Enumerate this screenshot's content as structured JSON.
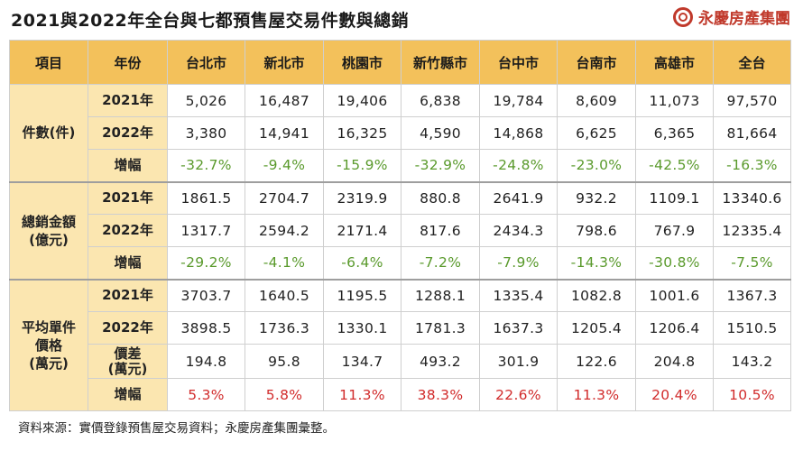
{
  "title": "2021與2022年全台與七都預售屋交易件數與總銷",
  "brand": {
    "name": "永慶房產集團",
    "logo_icon": "yungching-logo-icon"
  },
  "columns": [
    "項目",
    "年份",
    "台北市",
    "新北市",
    "桃園市",
    "新竹縣市",
    "台中市",
    "台南市",
    "高雄市",
    "全台"
  ],
  "groups": [
    {
      "label": "件數(件)",
      "rows": [
        {
          "label": "2021年",
          "values": [
            "5,026",
            "16,487",
            "19,406",
            "6,838",
            "19,784",
            "8,609",
            "11,073",
            "97,570"
          ],
          "tone": "normal"
        },
        {
          "label": "2022年",
          "values": [
            "3,380",
            "14,941",
            "16,325",
            "4,590",
            "14,868",
            "6,625",
            "6,365",
            "81,664"
          ],
          "tone": "normal"
        },
        {
          "label": "增幅",
          "values": [
            "-32.7%",
            "-9.4%",
            "-15.9%",
            "-32.9%",
            "-24.8%",
            "-23.0%",
            "-42.5%",
            "-16.3%"
          ],
          "tone": "green"
        }
      ]
    },
    {
      "label": "總銷金額\n(億元)",
      "rows": [
        {
          "label": "2021年",
          "values": [
            "1861.5",
            "2704.7",
            "2319.9",
            "880.8",
            "2641.9",
            "932.2",
            "1109.1",
            "13340.6"
          ],
          "tone": "normal"
        },
        {
          "label": "2022年",
          "values": [
            "1317.7",
            "2594.2",
            "2171.4",
            "817.6",
            "2434.3",
            "798.6",
            "767.9",
            "12335.4"
          ],
          "tone": "normal"
        },
        {
          "label": "增幅",
          "values": [
            "-29.2%",
            "-4.1%",
            "-6.4%",
            "-7.2%",
            "-7.9%",
            "-14.3%",
            "-30.8%",
            "-7.5%"
          ],
          "tone": "green"
        }
      ]
    },
    {
      "label": "平均單件\n價格\n(萬元)",
      "rows": [
        {
          "label": "2021年",
          "values": [
            "3703.7",
            "1640.5",
            "1195.5",
            "1288.1",
            "1335.4",
            "1082.8",
            "1001.6",
            "1367.3"
          ],
          "tone": "normal"
        },
        {
          "label": "2022年",
          "values": [
            "3898.5",
            "1736.3",
            "1330.1",
            "1781.3",
            "1637.3",
            "1205.4",
            "1206.4",
            "1510.5"
          ],
          "tone": "normal"
        },
        {
          "label": "價差\n(萬元)",
          "values": [
            "194.8",
            "95.8",
            "134.7",
            "493.2",
            "301.9",
            "122.6",
            "204.8",
            "143.2"
          ],
          "tone": "normal"
        },
        {
          "label": "增幅",
          "values": [
            "5.3%",
            "5.8%",
            "11.3%",
            "38.3%",
            "22.6%",
            "11.3%",
            "20.4%",
            "10.5%"
          ],
          "tone": "red"
        }
      ]
    }
  ],
  "footer": "資料來源：實價登錄預售屋交易資料；永慶房產集團彙整。",
  "colors": {
    "header_bg": "#f3c15b",
    "label_bg": "#fbe6b0",
    "decline_green": "#5a9a2c",
    "increase_red": "#d12b2b",
    "brand_red": "#c0392b"
  }
}
